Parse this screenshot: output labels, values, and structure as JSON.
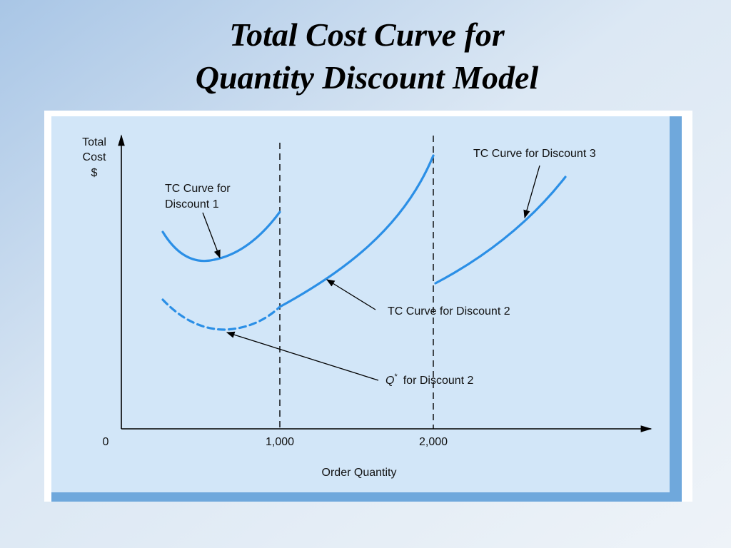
{
  "header": {
    "title_lines": [
      "Total Cost Curve for",
      "Quantity Discount Model"
    ]
  },
  "diagram": {
    "y_axis_label_lines": [
      "Total",
      "Cost",
      "$"
    ],
    "x_axis_label": "Order Quantity",
    "x_tick_labels": [
      "0",
      "1,000",
      "2,000"
    ],
    "annotations": {
      "discount1_lines": [
        "TC Curve for",
        "Discount 1"
      ],
      "discount2": "TC Curve for Discount 2",
      "discount3": "TC Curve for Discount 3",
      "qstar": {
        "symbol": "Q",
        "superscript": "*",
        "text": "for Discount 2"
      }
    }
  }
}
